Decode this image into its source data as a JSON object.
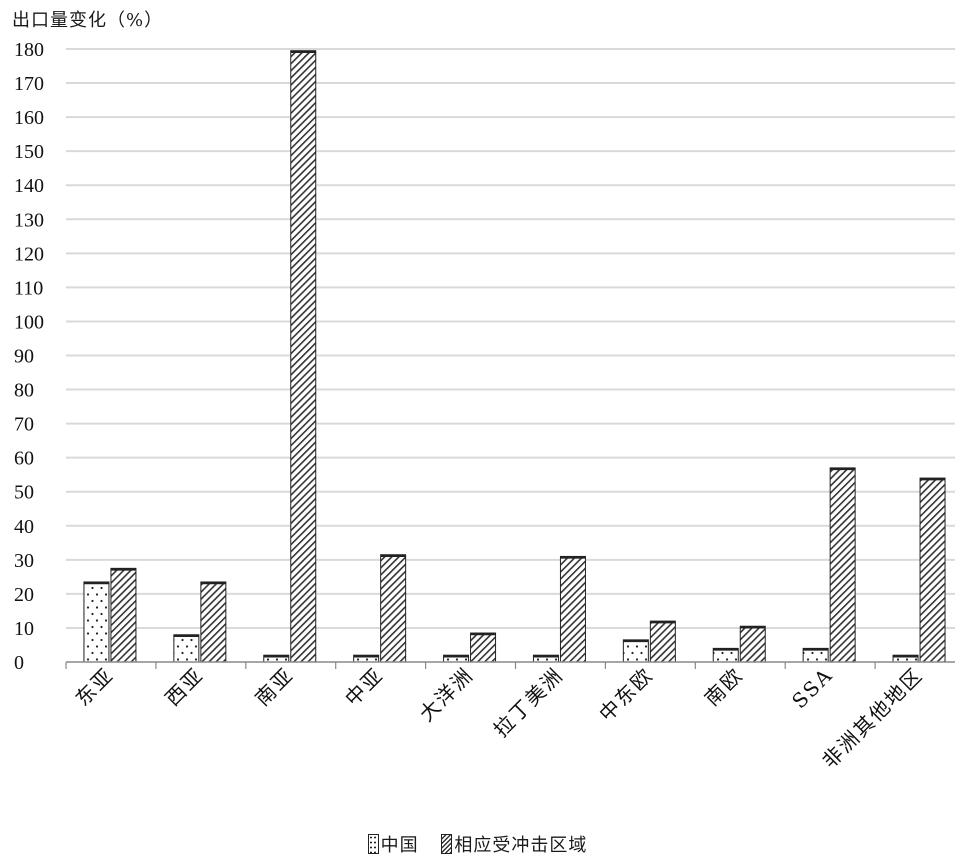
{
  "chart_data": {
    "type": "bar",
    "ylabel": "出口量变化（%）",
    "ylim": [
      0,
      180
    ],
    "yticks": [
      0,
      10,
      20,
      30,
      40,
      50,
      60,
      70,
      80,
      90,
      100,
      110,
      120,
      130,
      140,
      150,
      160,
      170,
      180
    ],
    "grid": true,
    "legend_position": "bottom",
    "categories": [
      "东亚",
      "西亚",
      "南亚",
      "中亚",
      "大洋洲",
      "拉丁美洲",
      "中东欧",
      "南欧",
      "SSA",
      "非洲其他地区"
    ],
    "series": [
      {
        "name": "中国",
        "pattern": "dots",
        "values": [
          23.5,
          8,
          2,
          2,
          2,
          2,
          6.5,
          4,
          4,
          2
        ]
      },
      {
        "name": "相应受冲击区域",
        "pattern": "hatch",
        "values": [
          27.5,
          23.5,
          179.5,
          31.5,
          8.5,
          31,
          12,
          10.5,
          57,
          54
        ]
      }
    ]
  },
  "colors": {
    "grid": "#d9d9d9",
    "axis": "#888888",
    "bar_edge": "#222222",
    "ink": "#333333"
  }
}
